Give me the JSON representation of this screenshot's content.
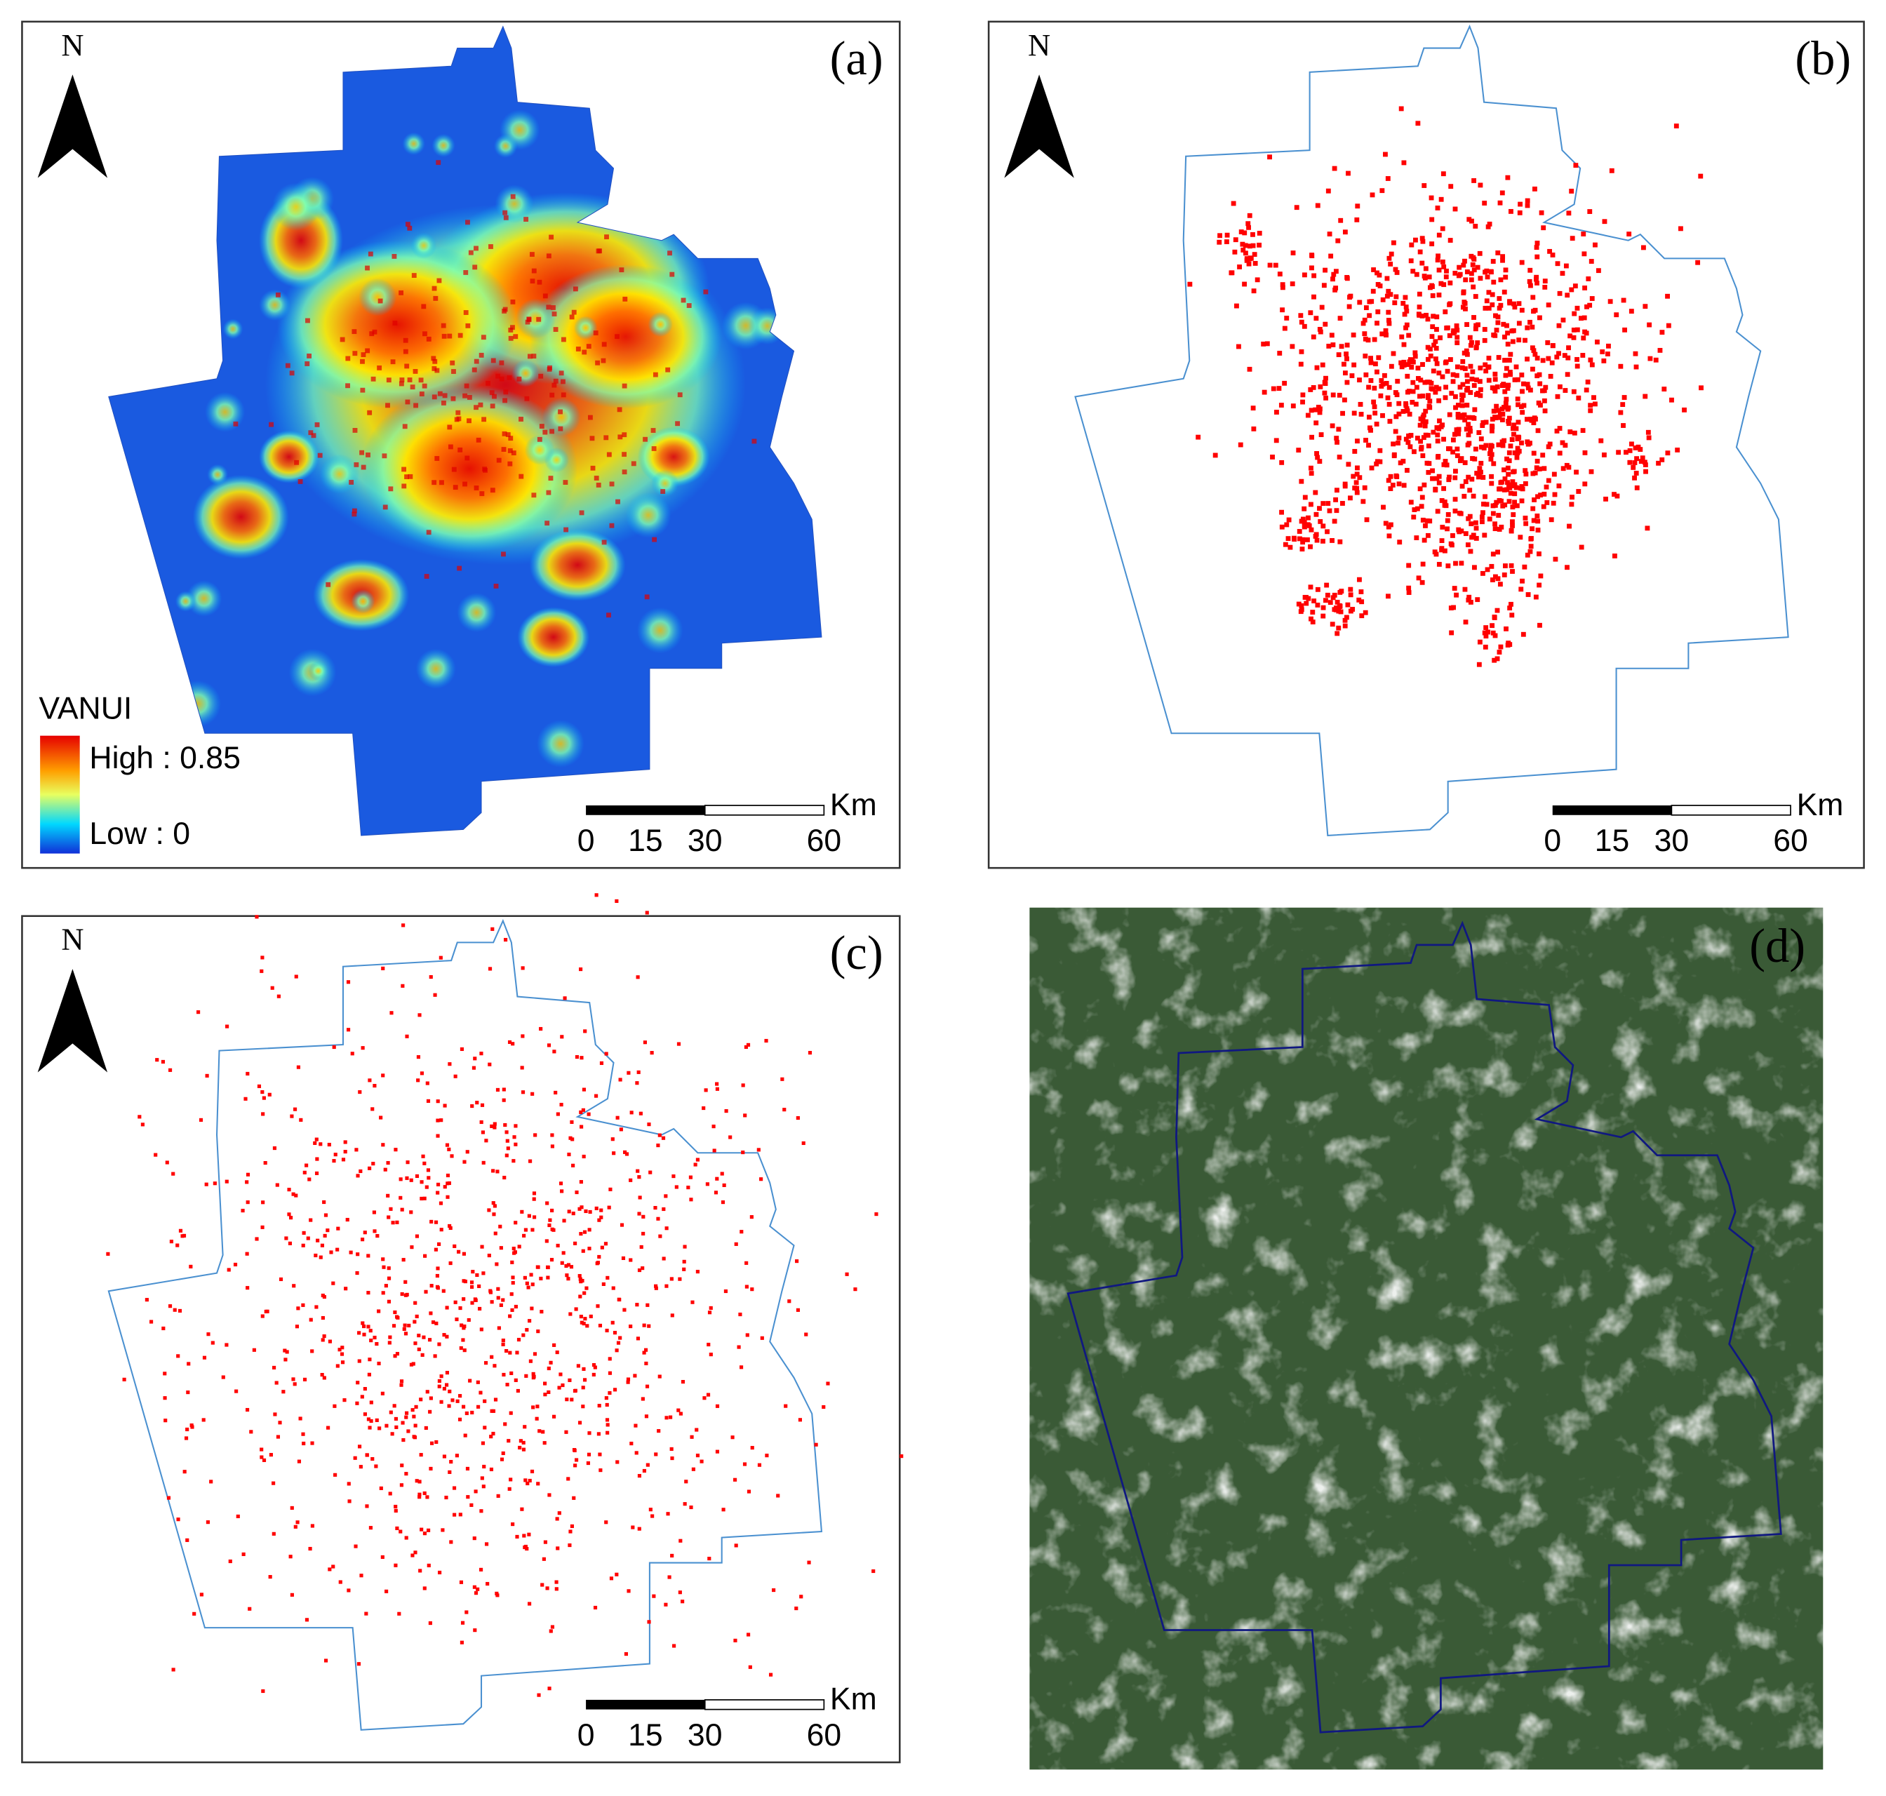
{
  "panels": [
    {
      "label": "(a)",
      "north": "N",
      "legend": {
        "title": "VANUI",
        "high": "High : 0.85",
        "low": "Low : 0"
      },
      "scale_bar": {
        "unit": "Km",
        "ticks": [
          0,
          15,
          30,
          60
        ]
      }
    },
    {
      "label": "(b)",
      "north": "N",
      "scale_bar": {
        "unit": "Km",
        "ticks": [
          0,
          15,
          30,
          60
        ]
      }
    },
    {
      "label": "(c)",
      "north": "N",
      "scale_bar": {
        "unit": "Km",
        "ticks": [
          0,
          15,
          30,
          60
        ]
      }
    },
    {
      "label": "(d)"
    }
  ]
}
